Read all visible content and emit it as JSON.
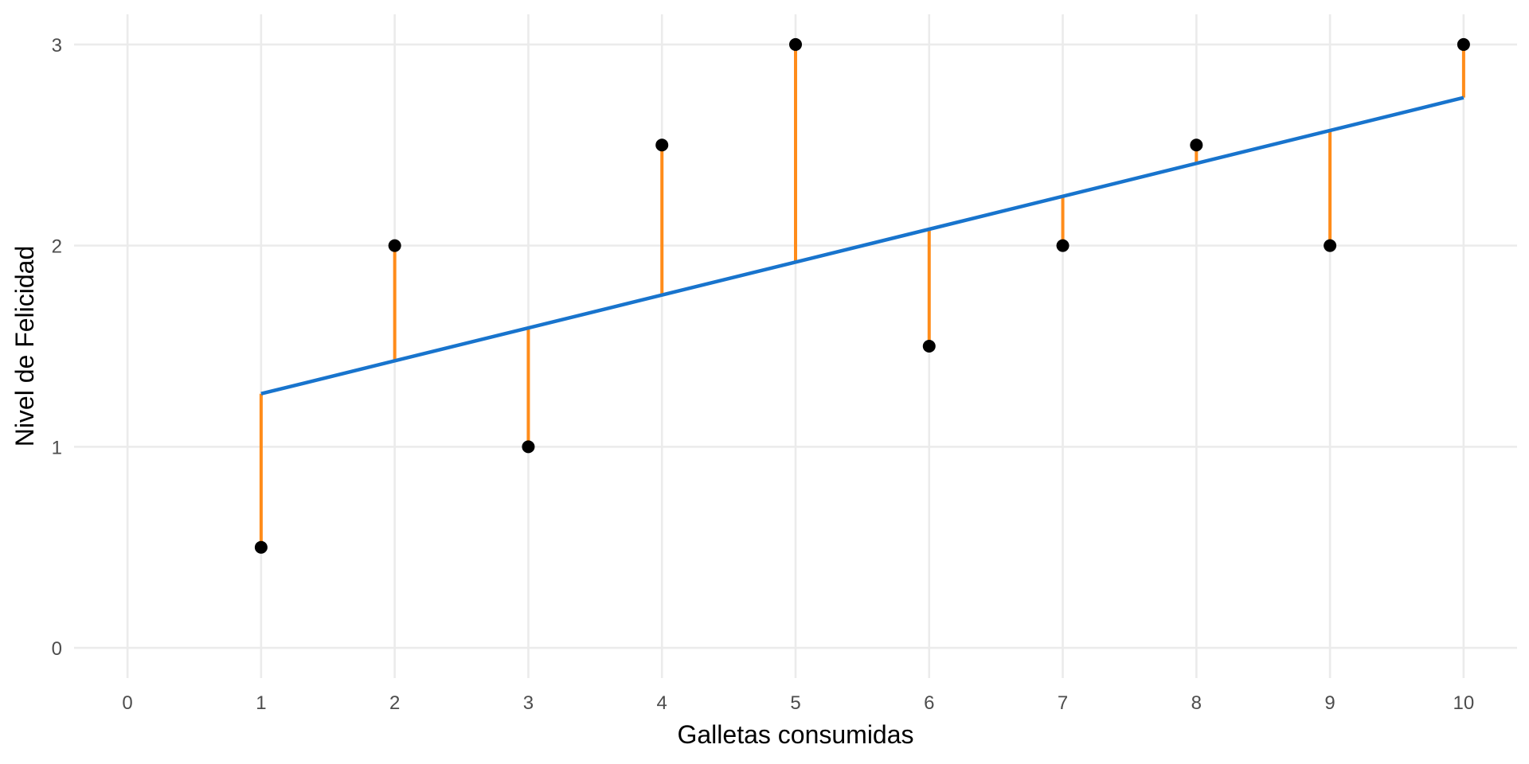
{
  "chart_data": {
    "type": "scatter",
    "title": "",
    "xlabel": "Galletas consumidas",
    "ylabel": "Nivel de Felicidad",
    "xlim": [
      -0.4,
      10.4
    ],
    "ylim": [
      -0.15,
      3.15
    ],
    "x_ticks": [
      0,
      1,
      2,
      3,
      4,
      5,
      6,
      7,
      8,
      9,
      10
    ],
    "x_tick_labels": [
      "0",
      "1",
      "2",
      "3",
      "4",
      "5",
      "6",
      "7",
      "8",
      "9",
      "10"
    ],
    "y_ticks": [
      0,
      1,
      2,
      3
    ],
    "y_tick_labels": [
      "0",
      "1",
      "2",
      "3"
    ],
    "grid": true,
    "legend": "none",
    "x": [
      1,
      2,
      3,
      4,
      5,
      6,
      7,
      8,
      9,
      10
    ],
    "y": [
      0.5,
      2.0,
      1.0,
      2.5,
      3.0,
      1.5,
      2.0,
      2.5,
      2.0,
      3.0
    ],
    "regression_line": {
      "intercept": 1.1,
      "slope": 0.1636,
      "x_range": [
        1,
        10
      ]
    },
    "colors": {
      "points": "#000000",
      "regression_line": "#1874cd",
      "residuals": "#ff8c1a",
      "grid": "#ebebeb"
    }
  }
}
